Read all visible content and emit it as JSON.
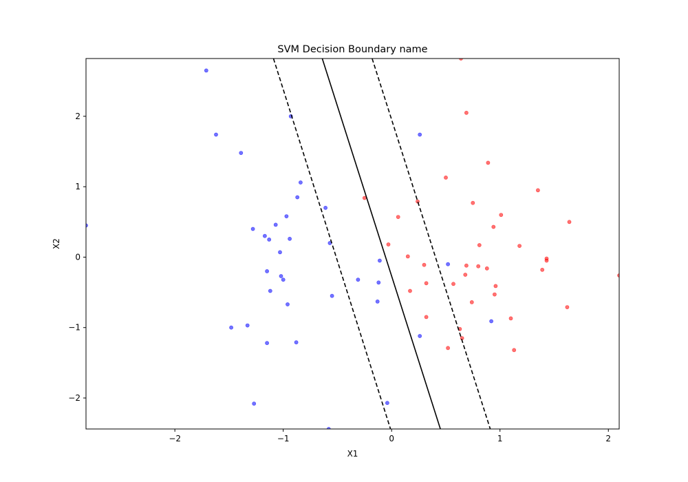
{
  "chart_data": {
    "type": "scatter",
    "title": "SVM Decision Boundary name",
    "xlabel": "X1",
    "ylabel": "X2",
    "xlim": [
      -2.82,
      2.1
    ],
    "ylim": [
      -2.44,
      2.82
    ],
    "xticks": [
      {
        "value": -2,
        "label": "−2"
      },
      {
        "value": -1,
        "label": "−1"
      },
      {
        "value": 0,
        "label": "0"
      },
      {
        "value": 1,
        "label": "1"
      },
      {
        "value": 2,
        "label": "2"
      }
    ],
    "yticks": [
      {
        "value": -2,
        "label": "−2"
      },
      {
        "value": -1,
        "label": "−1"
      },
      {
        "value": 0,
        "label": "0"
      },
      {
        "value": 1,
        "label": "1"
      },
      {
        "value": 2,
        "label": "2"
      }
    ],
    "grid": false,
    "colors": {
      "class_0": "#0000ff",
      "class_1": "#ff0000",
      "boundary": "#000000",
      "margin": "#000000"
    },
    "lines": [
      {
        "name": "decision-boundary",
        "style": "solid",
        "points": [
          [
            -0.64,
            2.82
          ],
          [
            0.45,
            -2.44
          ]
        ]
      },
      {
        "name": "margin-left",
        "style": "dashed",
        "points": [
          [
            -1.09,
            2.82
          ],
          [
            -0.01,
            -2.44
          ]
        ]
      },
      {
        "name": "margin-right",
        "style": "dashed",
        "points": [
          [
            -0.18,
            2.82
          ],
          [
            0.91,
            -2.44
          ]
        ]
      }
    ],
    "series": [
      {
        "class": 0,
        "color": "#0000ff",
        "points": [
          [
            -1.71,
            2.65
          ],
          [
            -1.62,
            1.74
          ],
          [
            -1.39,
            1.48
          ],
          [
            -0.93,
            2.0
          ],
          [
            -0.84,
            1.06
          ],
          [
            -0.87,
            0.85
          ],
          [
            -0.61,
            0.7
          ],
          [
            -0.97,
            0.58
          ],
          [
            -1.07,
            0.46
          ],
          [
            -1.28,
            0.4
          ],
          [
            -1.17,
            0.3
          ],
          [
            -1.13,
            0.25
          ],
          [
            -0.94,
            0.26
          ],
          [
            -0.57,
            0.2
          ],
          [
            -2.82,
            0.45
          ],
          [
            -1.03,
            0.07
          ],
          [
            -0.11,
            -0.05
          ],
          [
            0.52,
            -0.1
          ],
          [
            -1.15,
            -0.2
          ],
          [
            -1.02,
            -0.27
          ],
          [
            -1.0,
            -0.32
          ],
          [
            -0.31,
            -0.32
          ],
          [
            -0.12,
            -0.36
          ],
          [
            -1.12,
            -0.48
          ],
          [
            -0.55,
            -0.55
          ],
          [
            -0.96,
            -0.67
          ],
          [
            -0.13,
            -0.63
          ],
          [
            -1.33,
            -0.97
          ],
          [
            -1.48,
            -1.0
          ],
          [
            0.92,
            -0.91
          ],
          [
            -1.15,
            -1.22
          ],
          [
            -0.88,
            -1.21
          ],
          [
            0.26,
            -1.12
          ],
          [
            -1.27,
            -2.08
          ],
          [
            -0.04,
            -2.07
          ],
          [
            -0.58,
            -2.44
          ],
          [
            0.26,
            1.74
          ]
        ]
      },
      {
        "class": 1,
        "color": "#ff0000",
        "points": [
          [
            0.64,
            2.82
          ],
          [
            0.69,
            2.05
          ],
          [
            0.89,
            1.34
          ],
          [
            0.5,
            1.13
          ],
          [
            1.35,
            0.95
          ],
          [
            -0.25,
            0.84
          ],
          [
            0.24,
            0.79
          ],
          [
            0.75,
            0.77
          ],
          [
            1.01,
            0.6
          ],
          [
            0.06,
            0.57
          ],
          [
            1.64,
            0.5
          ],
          [
            0.94,
            0.43
          ],
          [
            -0.03,
            0.18
          ],
          [
            0.81,
            0.17
          ],
          [
            1.18,
            0.16
          ],
          [
            0.15,
            0.01
          ],
          [
            1.43,
            -0.02
          ],
          [
            1.43,
            -0.05
          ],
          [
            0.3,
            -0.11
          ],
          [
            0.69,
            -0.12
          ],
          [
            0.8,
            -0.13
          ],
          [
            0.88,
            -0.16
          ],
          [
            1.39,
            -0.18
          ],
          [
            2.1,
            -0.26
          ],
          [
            0.68,
            -0.25
          ],
          [
            0.32,
            -0.37
          ],
          [
            0.57,
            -0.38
          ],
          [
            0.96,
            -0.41
          ],
          [
            0.17,
            -0.48
          ],
          [
            0.95,
            -0.53
          ],
          [
            0.74,
            -0.64
          ],
          [
            1.62,
            -0.71
          ],
          [
            0.32,
            -0.85
          ],
          [
            1.1,
            -0.87
          ],
          [
            0.63,
            -1.02
          ],
          [
            0.65,
            -1.15
          ],
          [
            0.52,
            -1.29
          ],
          [
            1.13,
            -1.32
          ]
        ]
      }
    ]
  }
}
